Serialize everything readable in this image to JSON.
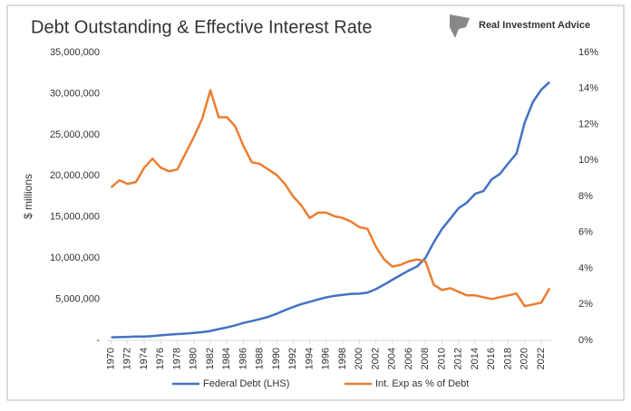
{
  "chart_data": {
    "type": "line",
    "title": "Debt Outstanding & Effective Interest Rate",
    "brand": "Real Investment Advice",
    "y_label": "$ millions",
    "x": [
      1970,
      1971,
      1972,
      1973,
      1974,
      1975,
      1976,
      1977,
      1978,
      1979,
      1980,
      1981,
      1982,
      1983,
      1984,
      1985,
      1986,
      1987,
      1988,
      1989,
      1990,
      1991,
      1992,
      1993,
      1994,
      1995,
      1996,
      1997,
      1998,
      1999,
      2000,
      2001,
      2002,
      2003,
      2004,
      2005,
      2006,
      2007,
      2008,
      2009,
      2010,
      2011,
      2012,
      2013,
      2014,
      2015,
      2016,
      2017,
      2018,
      2019,
      2020,
      2021,
      2022,
      2023
    ],
    "series": [
      {
        "name": "Federal Debt (LHS)",
        "color": "#4472c4",
        "axis": "y",
        "values": [
          370000,
          398000,
          427000,
          458000,
          475000,
          533000,
          620000,
          699000,
          772000,
          827000,
          908000,
          998000,
          1142000,
          1377000,
          1572000,
          1823000,
          2125000,
          2340000,
          2602000,
          2857000,
          3233000,
          3665000,
          4065000,
          4411000,
          4693000,
          4974000,
          5225000,
          5413000,
          5526000,
          5656000,
          5674000,
          5807000,
          6228000,
          6783000,
          7379000,
          7933000,
          8507000,
          9008000,
          10025000,
          11910000,
          13562000,
          14790000,
          16066000,
          16738000,
          17824000,
          18151000,
          19573000,
          20245000,
          21516000,
          22719000,
          26500000,
          29000000,
          30500000,
          31400000
        ]
      },
      {
        "name": "Int. Exp as % of Debt",
        "color": "#ed7d31",
        "axis": "y2",
        "values": [
          8.5,
          8.9,
          8.7,
          8.8,
          9.6,
          10.1,
          9.6,
          9.4,
          9.5,
          10.4,
          11.3,
          12.3,
          13.9,
          12.4,
          12.4,
          11.9,
          10.8,
          9.9,
          9.8,
          9.5,
          9.2,
          8.7,
          8.0,
          7.5,
          6.8,
          7.1,
          7.1,
          6.9,
          6.8,
          6.6,
          6.3,
          6.2,
          5.2,
          4.5,
          4.1,
          4.2,
          4.4,
          4.5,
          4.4,
          3.1,
          2.8,
          2.9,
          2.7,
          2.5,
          2.5,
          2.4,
          2.3,
          2.4,
          2.5,
          2.6,
          1.9,
          2.0,
          2.1,
          2.9
        ]
      }
    ],
    "xlim": [
      1969.5,
      2023.2
    ],
    "xticks": [
      1970,
      1972,
      1974,
      1976,
      1978,
      1980,
      1982,
      1984,
      1986,
      1988,
      1990,
      1992,
      1994,
      1996,
      1998,
      2000,
      2002,
      2004,
      2006,
      2008,
      2010,
      2012,
      2014,
      2016,
      2018,
      2020,
      2022
    ],
    "ylim": [
      0,
      35000000
    ],
    "yticks": [
      {
        "value": 0,
        "label": "-"
      },
      {
        "value": 5000000,
        "label": "5,000,000"
      },
      {
        "value": 10000000,
        "label": "10,000,000"
      },
      {
        "value": 15000000,
        "label": "15,000,000"
      },
      {
        "value": 20000000,
        "label": "20,000,000"
      },
      {
        "value": 25000000,
        "label": "25,000,000"
      },
      {
        "value": 30000000,
        "label": "30,000,000"
      },
      {
        "value": 35000000,
        "label": "35,000,000"
      }
    ],
    "y2lim": [
      0,
      16
    ],
    "y2ticks": [
      {
        "value": 0,
        "label": "0%"
      },
      {
        "value": 2,
        "label": "2%"
      },
      {
        "value": 4,
        "label": "4%"
      },
      {
        "value": 6,
        "label": "6%"
      },
      {
        "value": 8,
        "label": "8%"
      },
      {
        "value": 10,
        "label": "10%"
      },
      {
        "value": 12,
        "label": "12%"
      },
      {
        "value": 14,
        "label": "14%"
      },
      {
        "value": 16,
        "label": "16%"
      }
    ],
    "legend": "bottom"
  }
}
